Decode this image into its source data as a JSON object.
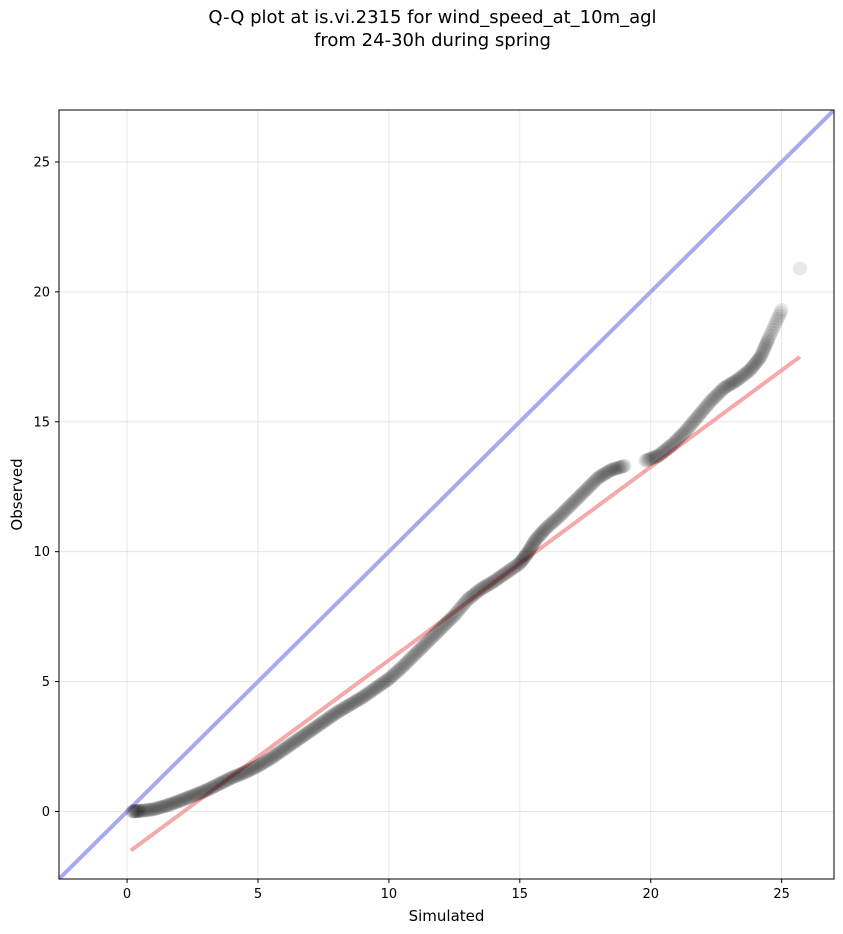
{
  "chart_data": {
    "type": "scatter",
    "title_line1": "Q-Q plot at is.vi.2315 for wind_speed_at_10m_agl",
    "title_line2": "from 24-30h during spring",
    "xlabel": "Simulated",
    "ylabel": "Observed",
    "xlim": [
      -2.6,
      27.0
    ],
    "ylim": [
      -2.6,
      27.0
    ],
    "xticks": [
      0,
      5,
      10,
      15,
      20,
      25
    ],
    "yticks": [
      0,
      5,
      10,
      15,
      20,
      25
    ],
    "xtick_labels": [
      "0",
      "5",
      "10",
      "15",
      "20",
      "25"
    ],
    "ytick_labels": [
      "0",
      "5",
      "10",
      "15",
      "20",
      "25"
    ],
    "grid": true,
    "identity_line": {
      "color": "#a8aaee"
    },
    "fit_line": {
      "color": "#f5aaaa",
      "x": [
        0.15,
        25.7
      ],
      "y": [
        -1.5,
        17.5
      ]
    },
    "point_color": "#000000",
    "quantiles_sim": [
      0.2,
      0.5,
      1.0,
      1.5,
      2.0,
      2.5,
      3.0,
      3.5,
      4.0,
      4.5,
      5.0,
      5.5,
      6.0,
      6.5,
      7.0,
      7.5,
      8.0,
      8.5,
      9.0,
      9.5,
      10.0,
      10.5,
      11.0,
      11.5,
      12.0,
      12.5,
      13.0,
      13.5,
      14.0,
      14.5,
      15.0,
      15.3,
      15.6,
      16.0,
      16.5,
      17.0,
      17.5,
      18.0,
      18.5,
      19.0,
      19.8,
      20.3,
      20.8,
      21.3,
      21.8,
      22.3,
      22.8,
      23.3,
      23.8,
      24.2,
      24.5,
      25.0,
      25.7
    ],
    "quantiles_obs": [
      0.0,
      0.02,
      0.08,
      0.22,
      0.4,
      0.6,
      0.8,
      1.05,
      1.3,
      1.5,
      1.75,
      2.05,
      2.4,
      2.75,
      3.1,
      3.45,
      3.8,
      4.1,
      4.4,
      4.75,
      5.1,
      5.55,
      6.05,
      6.55,
      7.05,
      7.55,
      8.15,
      8.55,
      8.85,
      9.2,
      9.55,
      9.95,
      10.45,
      10.9,
      11.35,
      11.85,
      12.35,
      12.85,
      13.15,
      13.3,
      13.5,
      13.7,
      14.1,
      14.6,
      15.2,
      15.8,
      16.3,
      16.6,
      17.0,
      17.5,
      18.2,
      19.3,
      20.9
    ]
  }
}
